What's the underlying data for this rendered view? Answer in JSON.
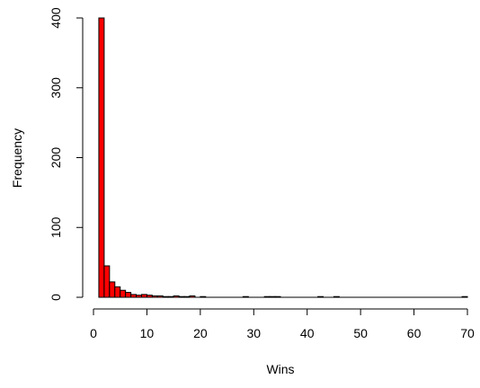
{
  "chart_data": {
    "type": "bar",
    "title": "",
    "xlabel": "Wins",
    "ylabel": "Frequency",
    "xlim": [
      0,
      70
    ],
    "ylim": [
      0,
      400
    ],
    "bin_width": 1,
    "xticks": [
      "0",
      "10",
      "20",
      "30",
      "40",
      "50",
      "60",
      "70"
    ],
    "yticks": [
      "0",
      "100",
      "200",
      "300",
      "400"
    ],
    "bar_fill": "#ff0000",
    "bar_stroke": "#000000",
    "grid": false,
    "bins": [
      {
        "x0": 1,
        "x1": 2,
        "count": 400
      },
      {
        "x0": 2,
        "x1": 3,
        "count": 45
      },
      {
        "x0": 3,
        "x1": 4,
        "count": 22
      },
      {
        "x0": 4,
        "x1": 5,
        "count": 15
      },
      {
        "x0": 5,
        "x1": 6,
        "count": 10
      },
      {
        "x0": 6,
        "x1": 7,
        "count": 7
      },
      {
        "x0": 7,
        "x1": 8,
        "count": 4
      },
      {
        "x0": 8,
        "x1": 9,
        "count": 3
      },
      {
        "x0": 9,
        "x1": 10,
        "count": 4
      },
      {
        "x0": 10,
        "x1": 11,
        "count": 3
      },
      {
        "x0": 11,
        "x1": 12,
        "count": 2
      },
      {
        "x0": 12,
        "x1": 13,
        "count": 2
      },
      {
        "x0": 13,
        "x1": 14,
        "count": 1
      },
      {
        "x0": 14,
        "x1": 15,
        "count": 1
      },
      {
        "x0": 15,
        "x1": 16,
        "count": 2
      },
      {
        "x0": 16,
        "x1": 17,
        "count": 1
      },
      {
        "x0": 17,
        "x1": 18,
        "count": 1
      },
      {
        "x0": 18,
        "x1": 19,
        "count": 2
      },
      {
        "x0": 19,
        "x1": 20,
        "count": 0
      },
      {
        "x0": 20,
        "x1": 21,
        "count": 1
      },
      {
        "x0": 28,
        "x1": 29,
        "count": 1
      },
      {
        "x0": 32,
        "x1": 33,
        "count": 1
      },
      {
        "x0": 33,
        "x1": 34,
        "count": 1
      },
      {
        "x0": 34,
        "x1": 35,
        "count": 1
      },
      {
        "x0": 42,
        "x1": 43,
        "count": 1
      },
      {
        "x0": 45,
        "x1": 46,
        "count": 1
      },
      {
        "x0": 69,
        "x1": 70,
        "count": 1
      }
    ]
  }
}
